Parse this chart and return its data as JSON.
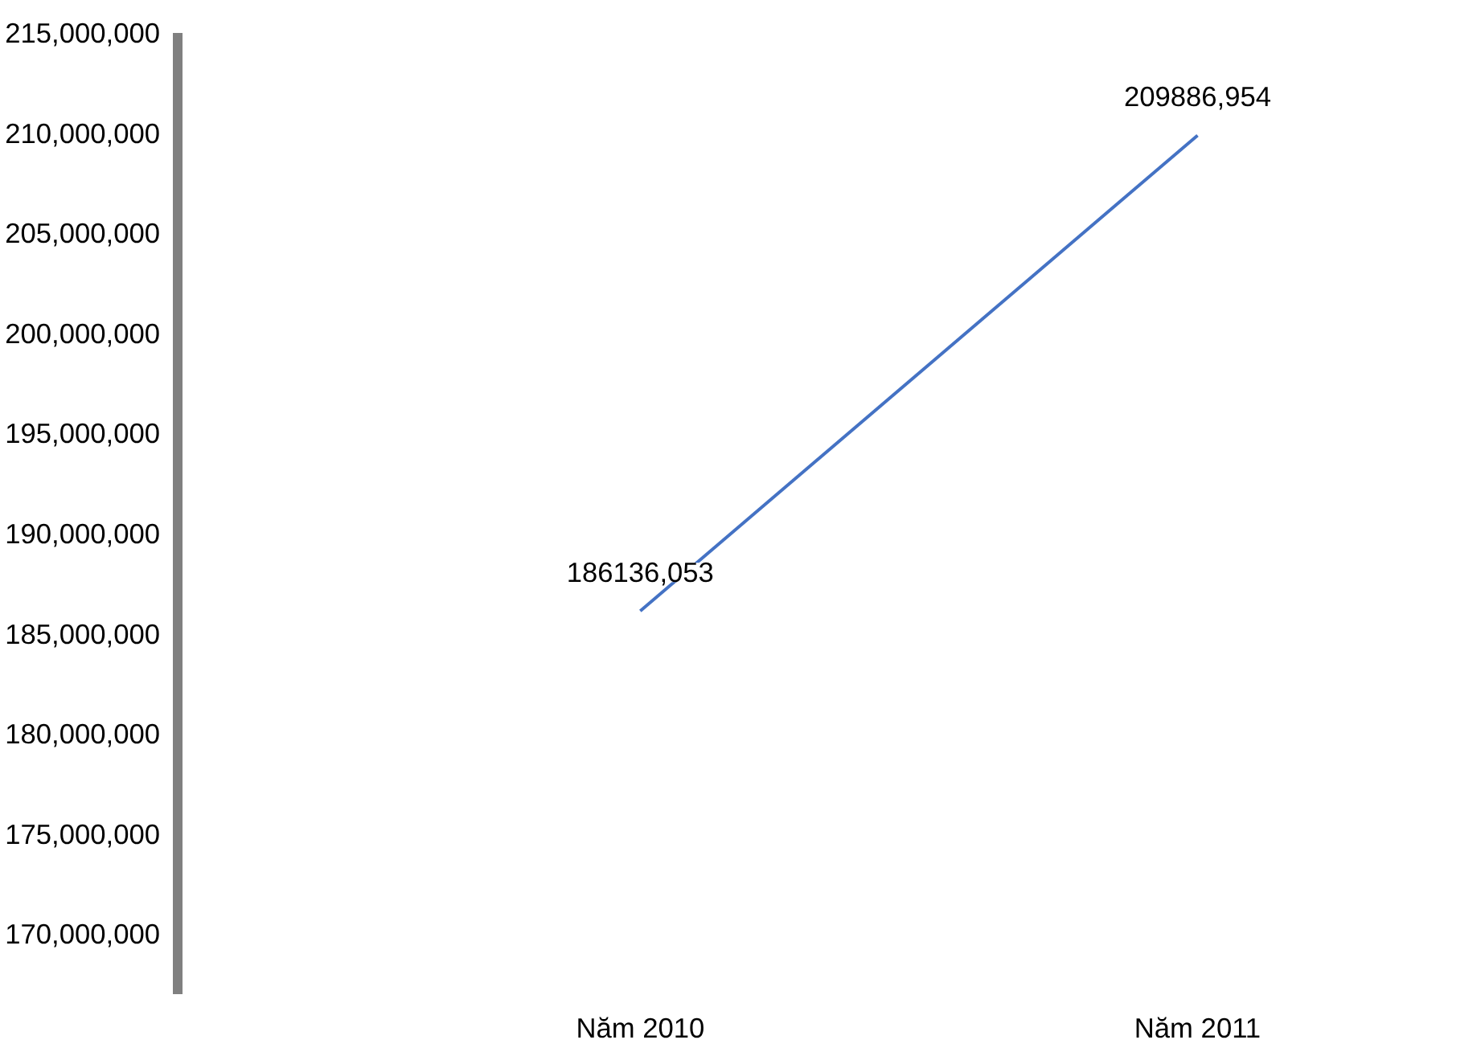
{
  "chart_data": {
    "type": "line",
    "categories": [
      "Năm 2010",
      "Năm 2011"
    ],
    "series": [
      {
        "color": "#4472c4",
        "values": [
          186136053,
          209886954
        ],
        "value_labels": [
          "186136,053",
          "209886,954"
        ]
      }
    ],
    "ylim": [
      167000000,
      215000000
    ],
    "yticks": [
      {
        "value": 170000000,
        "label": "170,000,000"
      },
      {
        "value": 175000000,
        "label": "175,000,000"
      },
      {
        "value": 180000000,
        "label": "180,000,000"
      },
      {
        "value": 185000000,
        "label": "185,000,000"
      },
      {
        "value": 190000000,
        "label": "190,000,000"
      },
      {
        "value": 195000000,
        "label": "195,000,000"
      },
      {
        "value": 200000000,
        "label": "200,000,000"
      },
      {
        "value": 205000000,
        "label": "205,000,000"
      },
      {
        "value": 210000000,
        "label": "210,000,000"
      },
      {
        "value": 215000000,
        "label": "215,000,000"
      }
    ],
    "grid": false,
    "marker": "none",
    "line_style": "solid"
  }
}
